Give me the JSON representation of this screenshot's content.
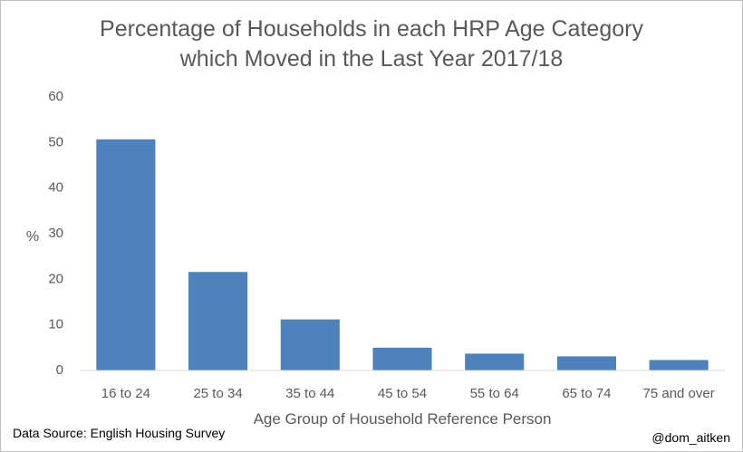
{
  "chart_data": {
    "type": "bar",
    "title_line1": "Percentage of Households  in each HRP Age Category",
    "title_line2": "which Moved in the Last Year 2017/18",
    "xlabel": "Age Group of Household Reference Person",
    "ylabel": "%",
    "categories": [
      "16 to 24",
      "25 to 34",
      "35 to 44",
      "45 to 54",
      "55 to 64",
      "65 to 74",
      "75 and over"
    ],
    "values": [
      50.7,
      21.6,
      11.2,
      5.0,
      3.7,
      3.1,
      2.3
    ],
    "ylim": [
      0,
      60
    ],
    "yticks": [
      0,
      10,
      20,
      30,
      40,
      50,
      60
    ],
    "grid": false,
    "bar_color": "#4f81bd"
  },
  "footer": {
    "source": "Data Source: English Housing Survey",
    "author": "@dom_aitken"
  }
}
